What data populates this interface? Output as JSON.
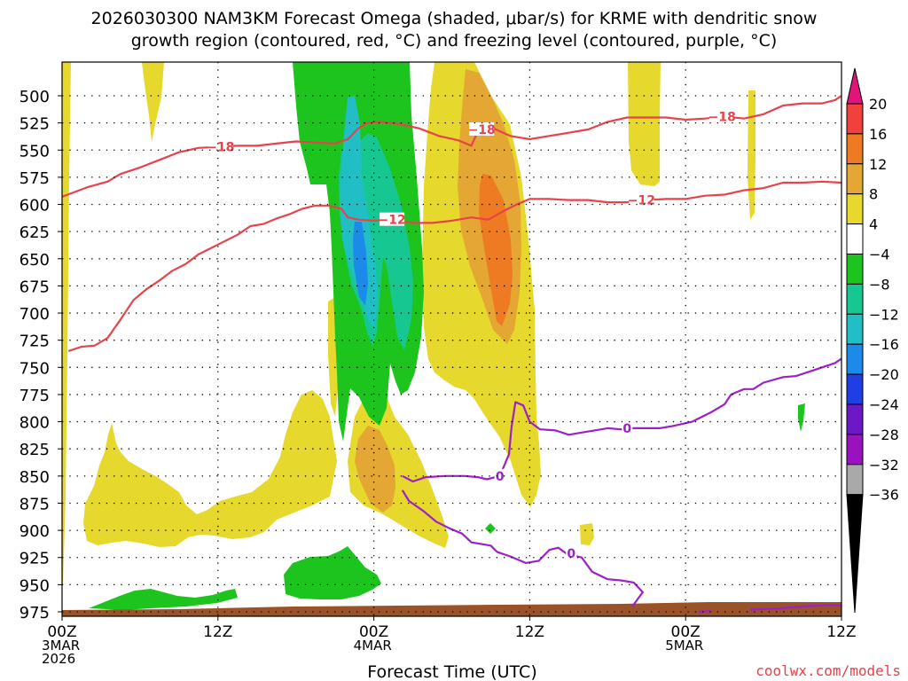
{
  "chart_data": {
    "type": "heatmap",
    "title_line1": "2026030300 NAM3KM Forecast Omega (shaded, μbar/s) for KRME with dendritic snow",
    "title_line2": "growth region (contoured, red, °C) and freezing level (contoured, purple, °C)",
    "xlabel": "Forecast Time (UTC)",
    "credit": "coolwx.com/models",
    "x_range_hours": [
      0,
      60
    ],
    "y_range_hpa": [
      485,
      985
    ],
    "y_ticks": [
      "500",
      "525",
      "550",
      "575",
      "600",
      "625",
      "650",
      "675",
      "700",
      "725",
      "750",
      "775",
      "800",
      "825",
      "850",
      "875",
      "900",
      "925",
      "950",
      "975"
    ],
    "x_ticks": [
      {
        "hour": 0,
        "lines": [
          "00Z",
          "3MAR",
          "2026"
        ]
      },
      {
        "hour": 12,
        "lines": [
          "12Z"
        ]
      },
      {
        "hour": 24,
        "lines": [
          "00Z",
          "4MAR"
        ]
      },
      {
        "hour": 36,
        "lines": [
          "12Z"
        ]
      },
      {
        "hour": 48,
        "lines": [
          "00Z",
          "5MAR"
        ]
      },
      {
        "hour": 60,
        "lines": [
          "12Z"
        ]
      }
    ],
    "colorbar": {
      "labels": [
        "20",
        "16",
        "12",
        "8",
        "4",
        "−4",
        "−8",
        "−12",
        "−16",
        "−20",
        "−24",
        "−28",
        "−32",
        "−36"
      ],
      "colors": [
        "#e0147a",
        "#f0413c",
        "#ee7a22",
        "#e4a733",
        "#e6d82c",
        "#ffffff",
        "#1ec41e",
        "#17c792",
        "#22bec6",
        "#1c8ae8",
        "#1f3ee4",
        "#6b19c8",
        "#9a12bf",
        "#a9a9a9",
        "#000000"
      ]
    },
    "contour_labels": {
      "minus18": "−18",
      "minus12": "−12",
      "zero": "0"
    },
    "contours": {
      "minus18": {
        "color": "#e8424a",
        "points": [
          [
            0,
            593
          ],
          [
            2,
            584
          ],
          [
            3.5,
            579
          ],
          [
            4.5,
            572
          ],
          [
            6,
            566
          ],
          [
            7.5,
            559
          ],
          [
            9,
            552
          ],
          [
            10.5,
            548
          ],
          [
            12,
            547
          ],
          [
            13.5,
            546
          ],
          [
            15,
            546
          ],
          [
            16.5,
            544
          ],
          [
            18,
            542
          ],
          [
            19.5,
            543
          ],
          [
            21,
            544
          ],
          [
            22,
            540
          ],
          [
            22.8,
            530
          ],
          [
            23.5,
            525
          ],
          [
            24.5,
            524
          ],
          [
            26,
            526
          ],
          [
            27.5,
            530
          ],
          [
            29,
            537
          ],
          [
            30.5,
            541
          ],
          [
            31.5,
            546
          ],
          [
            32,
            533
          ],
          [
            33,
            529
          ],
          [
            34.5,
            537
          ],
          [
            36,
            540
          ],
          [
            37.5,
            537
          ],
          [
            39,
            534
          ],
          [
            40.5,
            531
          ],
          [
            42,
            524
          ],
          [
            43.5,
            520
          ],
          [
            45,
            520
          ],
          [
            46.5,
            520
          ],
          [
            48,
            522
          ],
          [
            49.5,
            521
          ],
          [
            51,
            519
          ],
          [
            52.5,
            521
          ],
          [
            54,
            517
          ],
          [
            55.5,
            509
          ],
          [
            57,
            507
          ],
          [
            58.5,
            507
          ],
          [
            59.5,
            504
          ],
          [
            60,
            500
          ]
        ]
      },
      "minus12": {
        "color": "#e8424a",
        "points": [
          [
            0.5,
            735
          ],
          [
            1.5,
            731
          ],
          [
            2.5,
            730
          ],
          [
            3.5,
            723
          ],
          [
            4.5,
            706
          ],
          [
            5.5,
            688
          ],
          [
            6.5,
            678
          ],
          [
            7.5,
            670
          ],
          [
            8.5,
            661
          ],
          [
            9.5,
            655
          ],
          [
            10.5,
            646
          ],
          [
            11.5,
            640
          ],
          [
            12.5,
            634
          ],
          [
            13.5,
            628
          ],
          [
            14.5,
            620
          ],
          [
            15.5,
            618
          ],
          [
            16.5,
            613
          ],
          [
            17.5,
            609
          ],
          [
            18.5,
            604
          ],
          [
            19.5,
            601
          ],
          [
            20.5,
            601
          ],
          [
            21.5,
            604
          ],
          [
            22,
            612
          ],
          [
            22.8,
            614
          ],
          [
            24,
            615
          ],
          [
            25.5,
            614
          ],
          [
            27,
            617
          ],
          [
            28.5,
            617
          ],
          [
            30,
            615
          ],
          [
            31.5,
            612
          ],
          [
            32.8,
            614
          ],
          [
            34,
            606
          ],
          [
            35,
            600
          ],
          [
            36,
            595
          ],
          [
            37.5,
            595
          ],
          [
            39,
            596
          ],
          [
            40.5,
            596
          ],
          [
            42,
            598
          ],
          [
            43.5,
            598
          ],
          [
            45,
            596
          ],
          [
            46.5,
            595
          ],
          [
            48,
            595
          ],
          [
            49.5,
            592
          ],
          [
            51,
            591
          ],
          [
            52.5,
            587
          ],
          [
            54,
            585
          ],
          [
            55.5,
            580
          ],
          [
            57,
            580
          ],
          [
            58.5,
            579
          ],
          [
            60,
            580
          ]
        ]
      },
      "zero": {
        "color": "#9d20c8",
        "points": [
          [
            26.2,
            850
          ],
          [
            27,
            855
          ],
          [
            28,
            851
          ],
          [
            29.5,
            850
          ],
          [
            31,
            850
          ],
          [
            32,
            851
          ],
          [
            32.7,
            853
          ],
          [
            33.7,
            850
          ],
          [
            34.4,
            830
          ],
          [
            34.6,
            805
          ],
          [
            34.9,
            782
          ],
          [
            35.5,
            785
          ],
          [
            36,
            800
          ],
          [
            36.8,
            807
          ],
          [
            38,
            808
          ],
          [
            39,
            812
          ],
          [
            40,
            810
          ],
          [
            41,
            808
          ],
          [
            42,
            806
          ],
          [
            43,
            807
          ],
          [
            44,
            806
          ],
          [
            46,
            806
          ],
          [
            47,
            804
          ],
          [
            48.5,
            800
          ],
          [
            50,
            791
          ],
          [
            51,
            784
          ],
          [
            51.5,
            775
          ],
          [
            52.5,
            770
          ],
          [
            53.2,
            770
          ],
          [
            54,
            764
          ],
          [
            55.5,
            759
          ],
          [
            56.5,
            758
          ],
          [
            58,
            752
          ],
          [
            59.5,
            746
          ],
          [
            60,
            742
          ]
        ]
      },
      "zero_low": {
        "color": "#9d20c8",
        "points": [
          [
            26.2,
            863
          ],
          [
            26.7,
            873
          ],
          [
            27.8,
            882
          ],
          [
            28.8,
            892
          ],
          [
            29.8,
            898
          ],
          [
            30.8,
            903
          ],
          [
            31.5,
            911
          ],
          [
            32,
            912
          ],
          [
            33,
            914
          ],
          [
            33.5,
            920
          ],
          [
            34.5,
            924
          ],
          [
            35.7,
            930
          ],
          [
            36.7,
            928
          ],
          [
            37.5,
            918
          ],
          [
            38.2,
            916
          ],
          [
            38.9,
            922
          ],
          [
            40,
            925
          ],
          [
            40.8,
            938
          ],
          [
            42,
            945
          ],
          [
            43,
            946
          ],
          [
            44,
            948
          ],
          [
            44.7,
            957
          ],
          [
            43.9,
            970
          ]
        ]
      }
    }
  }
}
